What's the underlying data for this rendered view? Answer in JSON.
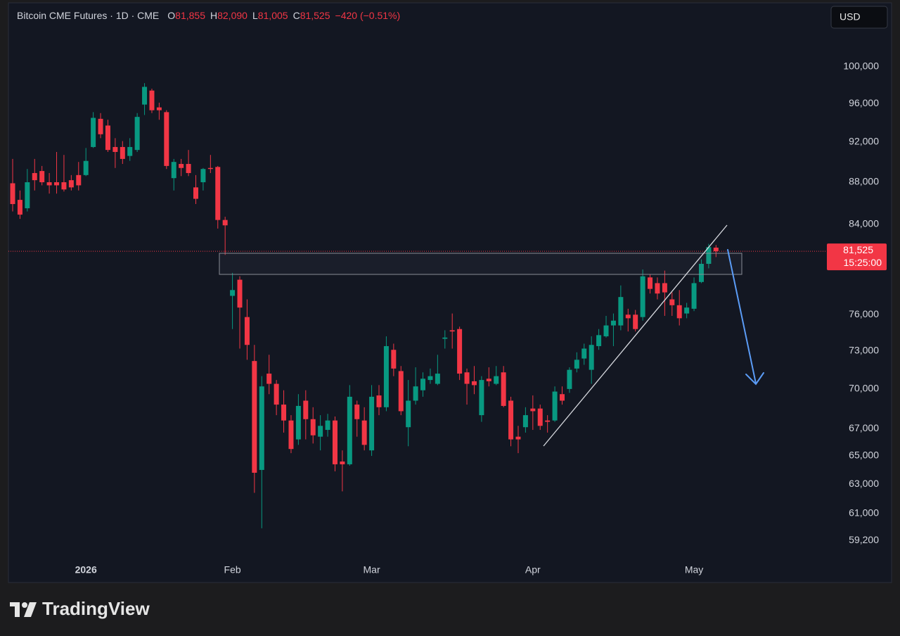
{
  "chart_data": {
    "type": "candlestick",
    "header": {
      "symbol": "Bitcoin CME Futures · 1D · CME",
      "ohlc_keys": [
        "O",
        "H",
        "L",
        "C"
      ],
      "ohlc_labels": [
        "81,855",
        "82,090",
        "81,005",
        "81,525"
      ],
      "change": "−420 (−0.51%)"
    },
    "currency": "USD",
    "brand": "TradingView",
    "last_price": {
      "value": 81525,
      "label": "81,525"
    },
    "countdown": "15:25:00",
    "log": true,
    "grid": false,
    "up_color": "#089981",
    "down_color": "#f23645",
    "ylim": [
      56500,
      107000
    ],
    "yticks": [
      {
        "value": 100000,
        "label": "100,000"
      },
      {
        "value": 96000,
        "label": "96,000"
      },
      {
        "value": 92000,
        "label": "92,000"
      },
      {
        "value": 88000,
        "label": "88,000"
      },
      {
        "value": 84000,
        "label": "84,000"
      },
      {
        "value": 76000,
        "label": "76,000"
      },
      {
        "value": 73000,
        "label": "73,000"
      },
      {
        "value": 70000,
        "label": "70,000"
      },
      {
        "value": 67000,
        "label": "67,000"
      },
      {
        "value": 65000,
        "label": "65,000"
      },
      {
        "value": 63000,
        "label": "63,000"
      },
      {
        "value": 61000,
        "label": "61,000"
      },
      {
        "value": 59200,
        "label": "59,200"
      }
    ],
    "categories": [
      null,
      null,
      null,
      null,
      null,
      null,
      null,
      null,
      null,
      null,
      "2026",
      null,
      null,
      null,
      null,
      null,
      null,
      null,
      null,
      null,
      null,
      null,
      null,
      null,
      null,
      null,
      null,
      null,
      null,
      null,
      "Feb",
      null,
      null,
      null,
      null,
      null,
      null,
      null,
      null,
      null,
      null,
      null,
      null,
      null,
      null,
      null,
      null,
      null,
      null,
      "Mar",
      null,
      null,
      null,
      null,
      null,
      null,
      null,
      null,
      null,
      null,
      null,
      null,
      null,
      null,
      null,
      null,
      null,
      null,
      null,
      null,
      null,
      "Apr",
      null,
      null,
      null,
      null,
      null,
      null,
      null,
      null,
      null,
      null,
      null,
      null,
      null,
      null,
      null,
      null,
      null,
      null,
      null,
      null,
      null,
      "May",
      null,
      null,
      null
    ],
    "open": [
      87900,
      86300,
      85500,
      88900,
      89100,
      88000,
      88000,
      88000,
      88200,
      88700,
      88700,
      91500,
      94400,
      93700,
      91500,
      91500,
      90600,
      91200,
      95900,
      97400,
      95600,
      95100,
      88400,
      89800,
      89800,
      87500,
      88000,
      89400,
      89500,
      84400,
      77600,
      79000,
      75800,
      72200,
      64000,
      71200,
      70400,
      68800,
      67600,
      66200,
      69100,
      67700,
      66400,
      66900,
      67600,
      64600,
      64400,
      68800,
      67600,
      65400,
      69500,
      68600,
      73100,
      71400,
      67100,
      69100,
      69900,
      70700,
      70400,
      74000,
      74700,
      74800,
      71300,
      70600,
      68000,
      70800,
      70400,
      71300,
      69100,
      66400,
      67100,
      68500,
      68500,
      67600,
      67600,
      69600,
      70000,
      71600,
      72400,
      71500,
      73400,
      74200,
      75100,
      75100,
      76000,
      76000,
      75800,
      79200,
      78700,
      78700,
      77300,
      76800,
      76100,
      76500,
      78800,
      80400,
      81855
    ],
    "high": [
      90300,
      87200,
      89300,
      90300,
      89600,
      88900,
      91000,
      90700,
      88700,
      90000,
      91400,
      95100,
      95000,
      94300,
      92400,
      92100,
      92400,
      95000,
      98200,
      97600,
      96100,
      95300,
      90300,
      90300,
      91200,
      88700,
      89400,
      90700,
      89600,
      84700,
      79600,
      79300,
      77300,
      73500,
      71000,
      72700,
      70700,
      69900,
      68000,
      69600,
      69900,
      68600,
      68000,
      68100,
      67900,
      65400,
      70300,
      69100,
      68600,
      70300,
      70300,
      74200,
      73600,
      71800,
      70700,
      71700,
      71300,
      71600,
      72700,
      74700,
      76100,
      75000,
      71600,
      71800,
      71000,
      71700,
      71800,
      71800,
      69400,
      67200,
      68600,
      69500,
      68800,
      68000,
      70200,
      70200,
      71700,
      72900,
      73600,
      74200,
      74800,
      75900,
      76100,
      78500,
      76500,
      76400,
      79900,
      79500,
      79200,
      79800,
      77900,
      78100,
      77000,
      79200,
      80800,
      82200,
      82090
    ],
    "low": [
      85200,
      84500,
      85200,
      87200,
      87700,
      86900,
      86900,
      87100,
      87200,
      87200,
      88600,
      91400,
      92400,
      91000,
      89400,
      89800,
      90100,
      91000,
      94800,
      95000,
      94300,
      89300,
      87200,
      88600,
      88600,
      85900,
      87200,
      88900,
      83600,
      81200,
      74800,
      73200,
      72300,
      62400,
      60000,
      69600,
      68000,
      66700,
      65200,
      65800,
      66200,
      65900,
      65400,
      66400,
      63900,
      62500,
      64300,
      66400,
      65400,
      65000,
      68000,
      68300,
      71000,
      68000,
      65700,
      68800,
      69400,
      70400,
      70300,
      73200,
      73200,
      70700,
      68800,
      69600,
      67500,
      70200,
      70300,
      68600,
      65700,
      65200,
      66700,
      66900,
      66900,
      66700,
      67500,
      68800,
      69700,
      71300,
      71900,
      70400,
      73100,
      74100,
      73400,
      74700,
      74600,
      74600,
      75500,
      77800,
      77300,
      75900,
      75900,
      75100,
      75700,
      76300,
      78700,
      80000,
      81005
    ],
    "close": [
      85900,
      84900,
      88000,
      88200,
      88000,
      87700,
      87700,
      87300,
      87500,
      87700,
      90100,
      94500,
      92800,
      91200,
      91000,
      90300,
      91500,
      94600,
      97800,
      95300,
      95300,
      89600,
      90000,
      89400,
      88900,
      86400,
      89300,
      89300,
      84400,
      83900,
      78100,
      76600,
      73500,
      63800,
      70200,
      70400,
      68800,
      67600,
      65500,
      68700,
      67700,
      66500,
      67200,
      67600,
      64400,
      64400,
      69400,
      67700,
      65800,
      69400,
      68600,
      73400,
      71600,
      68300,
      69100,
      70200,
      70800,
      71000,
      71200,
      74100,
      74600,
      71200,
      70400,
      70300,
      70700,
      70600,
      71000,
      68700,
      66200,
      66200,
      68000,
      68300,
      67200,
      67500,
      69800,
      69100,
      71500,
      72300,
      73200,
      73500,
      74300,
      75100,
      75500,
      77500,
      75700,
      74800,
      79300,
      78200,
      77800,
      77900,
      76800,
      75700,
      76600,
      78700,
      80400,
      81900,
      81525
    ]
  }
}
